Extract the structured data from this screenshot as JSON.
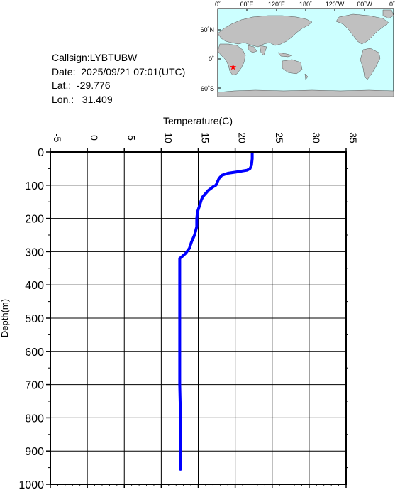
{
  "station": {
    "callsign": "Callsign:LYBTUBW",
    "date": "Date:  2025/09/21 07:01(UTC)",
    "lat": "Lat.:  -29.776",
    "lon": "Lon.:   31.409"
  },
  "map": {
    "top_labels": [
      "0˚",
      "60˚E",
      "120˚E",
      "180˚",
      "120˚W",
      "60˚W",
      "0˚"
    ],
    "side_labels": [
      "60˚N",
      "0˚",
      "60˚S"
    ],
    "marker": {
      "lat": -29.776,
      "lon": 31.409,
      "color": "#ff0000"
    },
    "ocean_color": "#ccffff",
    "land_color": "#c0c0c0"
  },
  "chart_data": {
    "type": "line",
    "xlabel": "Temperature(C)",
    "ylabel": "Depth(m)",
    "xlim": [
      -5,
      35
    ],
    "ylim": [
      0,
      1000
    ],
    "x_ticks": [
      "-5",
      "0",
      "5",
      "10",
      "15",
      "20",
      "25",
      "30",
      "35"
    ],
    "y_ticks": [
      "0",
      "100",
      "200",
      "300",
      "400",
      "500",
      "600",
      "700",
      "800",
      "900",
      "1000"
    ],
    "y_reversed": true,
    "grid": true,
    "line_color": "#0000ff",
    "series": [
      {
        "points": [
          [
            22.3,
            0
          ],
          [
            22.3,
            20
          ],
          [
            22.2,
            40
          ],
          [
            22.0,
            50
          ],
          [
            21.6,
            55
          ],
          [
            21.0,
            57
          ],
          [
            20.2,
            60
          ],
          [
            19.0,
            64
          ],
          [
            18.2,
            70
          ],
          [
            17.8,
            80
          ],
          [
            17.6,
            90
          ],
          [
            17.4,
            100
          ],
          [
            17.0,
            105
          ],
          [
            16.4,
            115
          ],
          [
            16.0,
            125
          ],
          [
            15.6,
            135
          ],
          [
            15.4,
            145
          ],
          [
            15.2,
            160
          ],
          [
            14.9,
            180
          ],
          [
            14.8,
            200
          ],
          [
            14.8,
            225
          ],
          [
            14.5,
            250
          ],
          [
            14.1,
            270
          ],
          [
            13.8,
            290
          ],
          [
            13.3,
            305
          ],
          [
            12.8,
            315
          ],
          [
            12.5,
            320
          ],
          [
            12.5,
            350
          ],
          [
            12.5,
            400
          ],
          [
            12.5,
            500
          ],
          [
            12.5,
            600
          ],
          [
            12.5,
            700
          ],
          [
            12.6,
            800
          ],
          [
            12.6,
            900
          ],
          [
            12.6,
            955
          ]
        ]
      }
    ]
  }
}
